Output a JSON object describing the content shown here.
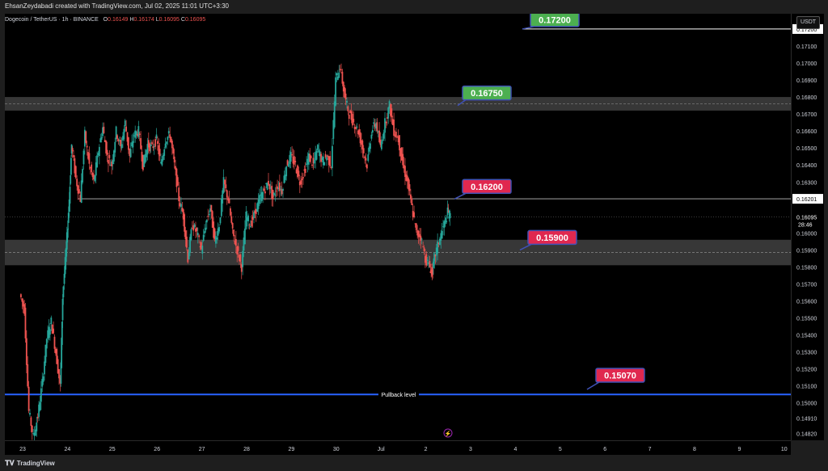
{
  "header": {
    "credit": "EhsanZeydabadi created with TradingView.com, Jul 02, 2025 11:01 UTC+3:30"
  },
  "symbol": {
    "name": "Dogecoin / TetherUS · 1h · BINANCE",
    "open_label": "O",
    "open": "0.16149",
    "high_label": "H",
    "high": "0.16174",
    "low_label": "L",
    "low": "0.16095",
    "close_label": "C",
    "close": "0.16095"
  },
  "currency_button": "USDT",
  "footer": {
    "logo_text": "TradingView"
  },
  "colors": {
    "up": "#26a69a",
    "down": "#ef5350",
    "support_zone": "#4a4a4a",
    "pullback_line": "#2962ff",
    "label_green": "#4caf50",
    "label_red": "#e0284f",
    "label_blue_border": "#3f51b5"
  },
  "chart_data": {
    "type": "candlestick",
    "title": "",
    "x_ticks": [
      "23",
      "24",
      "25",
      "26",
      "27",
      "28",
      "29",
      "30",
      "Jul",
      "2",
      "3",
      "4",
      "5",
      "6",
      "7",
      "8",
      "9",
      "10"
    ],
    "y_ticks": [
      "0.14820",
      "0.14910",
      "0.15000",
      "0.15100",
      "0.15200",
      "0.15300",
      "0.15400",
      "0.15500",
      "0.15600",
      "0.15700",
      "0.15800",
      "0.15900",
      "0.16000",
      "0.16100",
      "0.16200",
      "0.16300",
      "0.16400",
      "0.16500",
      "0.16600",
      "0.16700",
      "0.16800",
      "0.16900",
      "0.17000",
      "0.17100",
      "0.17200"
    ],
    "ylim": [
      0.1478,
      0.1729
    ],
    "last_price": "0.16095",
    "countdown": "28:46",
    "line_tag": "0.16201",
    "top_tag": "0.17200",
    "zones": [
      {
        "from": 0.1672,
        "to": 0.168
      },
      {
        "from": 0.1581,
        "to": 0.1596
      }
    ],
    "levels": [
      {
        "value": 0.172,
        "label": "0.17200",
        "style": "green"
      },
      {
        "value": 0.1675,
        "label": "0.16750",
        "style": "green"
      },
      {
        "value": 0.162,
        "label": "0.16200",
        "style": "red"
      },
      {
        "value": 0.159,
        "label": "0.15900",
        "style": "red"
      },
      {
        "value": 0.1507,
        "label": "0.15070",
        "style": "red"
      }
    ],
    "pullback": {
      "value": 0.1505,
      "label": "Pullback level"
    },
    "price_path": [
      [
        22.95,
        0.1564
      ],
      [
        23.05,
        0.1555
      ],
      [
        23.15,
        0.1495
      ],
      [
        23.25,
        0.148
      ],
      [
        23.35,
        0.1492
      ],
      [
        23.45,
        0.1512
      ],
      [
        23.55,
        0.1538
      ],
      [
        23.65,
        0.1548
      ],
      [
        23.75,
        0.153
      ],
      [
        23.85,
        0.151
      ],
      [
        23.9,
        0.1562
      ],
      [
        23.98,
        0.159
      ],
      [
        24.05,
        0.162
      ],
      [
        24.1,
        0.1652
      ],
      [
        24.2,
        0.1632
      ],
      [
        24.3,
        0.162
      ],
      [
        24.4,
        0.1658
      ],
      [
        24.5,
        0.164
      ],
      [
        24.6,
        0.163
      ],
      [
        24.7,
        0.1648
      ],
      [
        24.8,
        0.1662
      ],
      [
        24.9,
        0.1645
      ],
      [
        25.0,
        0.164
      ],
      [
        25.1,
        0.166
      ],
      [
        25.2,
        0.165
      ],
      [
        25.3,
        0.1665
      ],
      [
        25.4,
        0.1645
      ],
      [
        25.5,
        0.1658
      ],
      [
        25.6,
        0.166
      ],
      [
        25.7,
        0.164
      ],
      [
        25.8,
        0.1652
      ],
      [
        25.9,
        0.165
      ],
      [
        26.0,
        0.1655
      ],
      [
        26.1,
        0.164
      ],
      [
        26.2,
        0.1655
      ],
      [
        26.3,
        0.1658
      ],
      [
        26.4,
        0.164
      ],
      [
        26.5,
        0.162
      ],
      [
        26.6,
        0.161
      ],
      [
        26.7,
        0.1585
      ],
      [
        26.8,
        0.1605
      ],
      [
        26.9,
        0.16
      ],
      [
        27.0,
        0.159
      ],
      [
        27.1,
        0.1605
      ],
      [
        27.2,
        0.1615
      ],
      [
        27.3,
        0.1595
      ],
      [
        27.4,
        0.1605
      ],
      [
        27.5,
        0.163
      ],
      [
        27.6,
        0.162
      ],
      [
        27.7,
        0.16
      ],
      [
        27.8,
        0.159
      ],
      [
        27.9,
        0.158
      ],
      [
        28.0,
        0.161
      ],
      [
        28.1,
        0.1605
      ],
      [
        28.2,
        0.1612
      ],
      [
        28.3,
        0.162
      ],
      [
        28.4,
        0.1625
      ],
      [
        28.5,
        0.163
      ],
      [
        28.6,
        0.162
      ],
      [
        28.7,
        0.1628
      ],
      [
        28.8,
        0.1625
      ],
      [
        28.9,
        0.164
      ],
      [
        29.0,
        0.1645
      ],
      [
        29.1,
        0.164
      ],
      [
        29.2,
        0.163
      ],
      [
        29.3,
        0.1636
      ],
      [
        29.4,
        0.1645
      ],
      [
        29.5,
        0.164
      ],
      [
        29.6,
        0.165
      ],
      [
        29.7,
        0.1642
      ],
      [
        29.8,
        0.1645
      ],
      [
        29.9,
        0.164
      ],
      [
        30.0,
        0.169
      ],
      [
        30.1,
        0.1698
      ],
      [
        30.2,
        0.168
      ],
      [
        30.3,
        0.167
      ],
      [
        30.4,
        0.1665
      ],
      [
        30.5,
        0.166
      ],
      [
        30.6,
        0.165
      ],
      [
        30.7,
        0.164
      ],
      [
        30.8,
        0.166
      ],
      [
        30.9,
        0.1665
      ],
      [
        31.0,
        0.165
      ],
      [
        31.1,
        0.1665
      ],
      [
        31.2,
        0.1675
      ],
      [
        31.3,
        0.166
      ],
      [
        31.4,
        0.1655
      ],
      [
        31.5,
        0.164
      ],
      [
        31.6,
        0.163
      ],
      [
        31.7,
        0.1615
      ],
      [
        31.8,
        0.16
      ],
      [
        31.9,
        0.1598
      ],
      [
        32.0,
        0.1585
      ],
      [
        32.1,
        0.158
      ],
      [
        32.15,
        0.1576
      ],
      [
        32.2,
        0.1585
      ],
      [
        32.3,
        0.1595
      ],
      [
        32.4,
        0.1603
      ],
      [
        32.5,
        0.1612
      ],
      [
        32.55,
        0.161
      ]
    ]
  }
}
